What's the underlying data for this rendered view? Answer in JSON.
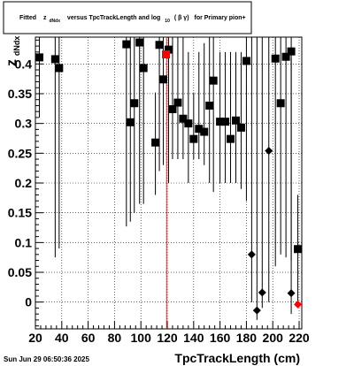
{
  "chart_data": {
    "type": "scatter",
    "title_main": "Fitted",
    "title_z": "z",
    "title_z_sub": "dNdx",
    "title_mid": "versus TpcTrackLength and log",
    "title_log_sub": "10",
    "title_beta": "( β γ)",
    "title_end": "for Primary pion+",
    "ylabel_main": "z",
    "ylabel_sub": "dNdx",
    "xlabel": "TpcTrackLength (cm)",
    "xlim": [
      20,
      222
    ],
    "ylim": [
      -0.045,
      0.445
    ],
    "xticks": [
      20,
      40,
      60,
      80,
      100,
      120,
      140,
      160,
      180,
      200,
      220
    ],
    "xtick_labels": [
      "20",
      "40",
      "60",
      "80",
      "100",
      "120",
      "140",
      "160",
      "180",
      "200",
      "220"
    ],
    "yticks": [
      0,
      0.05,
      0.1,
      0.15,
      0.2,
      0.25,
      0.3,
      0.35,
      0.4
    ],
    "ytick_labels": [
      "0",
      "0.05",
      "0.1",
      "0.15",
      "0.2",
      "0.25",
      "0.3",
      "0.35",
      "0.4"
    ],
    "grid": true,
    "vertical_line_x": 119.5,
    "series": [
      {
        "marker": "square",
        "color": "#000000",
        "points": [
          {
            "x": 23,
            "y": 0.411,
            "lo": 0.31,
            "hi": 0.445
          },
          {
            "x": 35,
            "y": 0.408,
            "lo": 0.075,
            "hi": 0.445
          },
          {
            "x": 38,
            "y": 0.393,
            "lo": 0.09,
            "hi": 0.445
          },
          {
            "x": 89,
            "y": 0.433,
            "lo": 0.127,
            "hi": 0.445
          },
          {
            "x": 92,
            "y": 0.302,
            "lo": 0.135,
            "hi": 0.445
          },
          {
            "x": 95,
            "y": 0.334,
            "lo": 0.15,
            "hi": 0.445
          },
          {
            "x": 99,
            "y": 0.436,
            "lo": 0.165,
            "hi": 0.445
          },
          {
            "x": 102,
            "y": 0.393,
            "lo": 0.165,
            "hi": 0.445
          },
          {
            "x": 111,
            "y": 0.268,
            "lo": 0.18,
            "hi": 0.352
          },
          {
            "x": 114,
            "y": 0.432,
            "lo": 0.22,
            "hi": 0.445
          },
          {
            "x": 117,
            "y": 0.374,
            "lo": 0.23,
            "hi": 0.445
          },
          {
            "x": 121,
            "y": 0.424,
            "lo": 0.2,
            "hi": 0.445
          },
          {
            "x": 124,
            "y": 0.324,
            "lo": 0.24,
            "hi": 0.445
          },
          {
            "x": 128,
            "y": 0.335,
            "lo": 0.24,
            "hi": 0.445
          },
          {
            "x": 132,
            "y": 0.308,
            "lo": 0.24,
            "hi": 0.445
          },
          {
            "x": 136,
            "y": 0.3,
            "lo": 0.2,
            "hi": 0.42
          },
          {
            "x": 140,
            "y": 0.274,
            "lo": 0.24,
            "hi": 0.352
          },
          {
            "x": 144,
            "y": 0.291,
            "lo": 0.24,
            "hi": 0.42
          },
          {
            "x": 148,
            "y": 0.286,
            "lo": 0.23,
            "hi": 0.435
          },
          {
            "x": 152,
            "y": 0.33,
            "lo": 0.2,
            "hi": 0.445
          },
          {
            "x": 155,
            "y": 0.372,
            "lo": 0.185,
            "hi": 0.445
          },
          {
            "x": 160,
            "y": 0.303,
            "lo": 0.2,
            "hi": 0.42
          },
          {
            "x": 164,
            "y": 0.303,
            "lo": 0.2,
            "hi": 0.42
          },
          {
            "x": 168,
            "y": 0.274,
            "lo": 0.2,
            "hi": 0.42
          },
          {
            "x": 172,
            "y": 0.305,
            "lo": 0.2,
            "hi": 0.42
          },
          {
            "x": 176,
            "y": 0.293,
            "lo": 0.19,
            "hi": 0.42
          },
          {
            "x": 180,
            "y": 0.405,
            "lo": 0.17,
            "hi": 0.445
          },
          {
            "x": 202,
            "y": 0.409,
            "lo": 0.06,
            "hi": 0.445
          },
          {
            "x": 206,
            "y": 0.334,
            "lo": 0.08,
            "hi": 0.445
          },
          {
            "x": 210,
            "y": 0.412,
            "lo": 0.075,
            "hi": 0.445
          },
          {
            "x": 214,
            "y": 0.421,
            "lo": 0.07,
            "hi": 0.445
          },
          {
            "x": 219,
            "y": 0.089,
            "lo": 0.0,
            "hi": 0.18
          }
        ]
      },
      {
        "marker": "diamond",
        "color": "#000000",
        "points": [
          {
            "x": 184,
            "y": 0.08,
            "lo": 0.0,
            "hi": 0.445
          },
          {
            "x": 188,
            "y": -0.014,
            "lo": -0.03,
            "hi": 0.445
          },
          {
            "x": 192,
            "y": 0.016,
            "lo": -0.01,
            "hi": 0.445
          },
          {
            "x": 197,
            "y": 0.254,
            "lo": 0.0,
            "hi": 0.445
          },
          {
            "x": 214,
            "y": 0.015,
            "lo": -0.02,
            "hi": 0.41
          }
        ]
      },
      {
        "marker": "square",
        "color": "#ff0000",
        "points": [
          {
            "x": 119,
            "y": 0.416
          }
        ]
      },
      {
        "marker": "diamond",
        "color": "#ff0000",
        "points": [
          {
            "x": 219,
            "y": -0.004
          }
        ]
      }
    ]
  },
  "footer": {
    "timestamp": "Sun Jun 29 06:50:36 2025"
  }
}
